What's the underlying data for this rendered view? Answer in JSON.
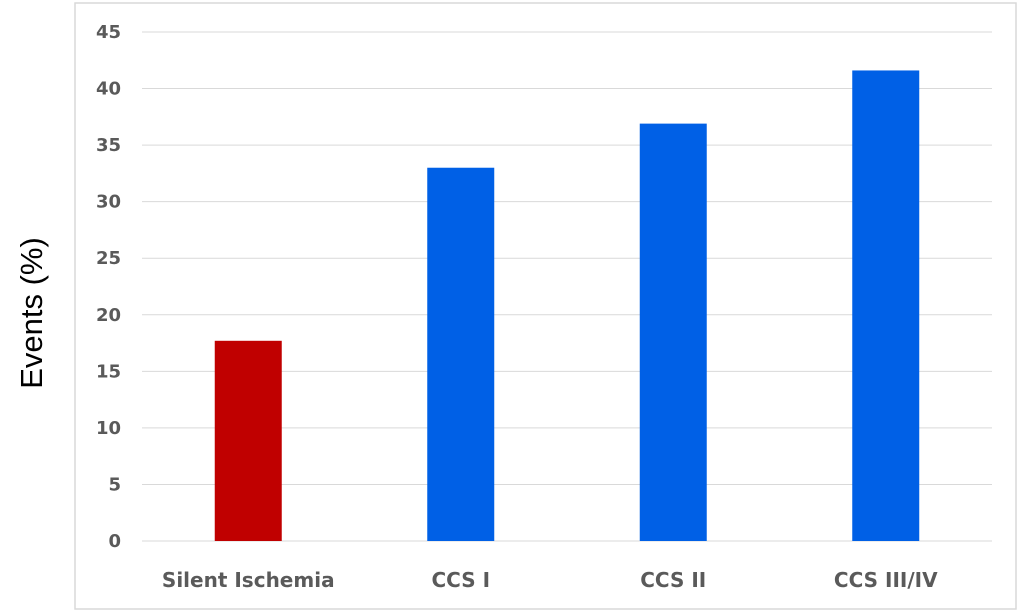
{
  "chart_data": {
    "type": "bar",
    "title": "",
    "xlabel": "",
    "ylabel": "Events (%)",
    "categories": [
      "Silent Ischemia",
      "CCS I",
      "CCS II",
      "CCS III/IV"
    ],
    "values": [
      17.7,
      33.0,
      36.9,
      41.6
    ],
    "bar_colors": [
      "#c00000",
      "#0060e6",
      "#0060e6",
      "#0060e6"
    ],
    "ylim": [
      0,
      45
    ],
    "yticks": [
      0,
      5,
      10,
      15,
      20,
      25,
      30,
      35,
      40,
      45
    ],
    "grid": true,
    "legend": "none"
  }
}
